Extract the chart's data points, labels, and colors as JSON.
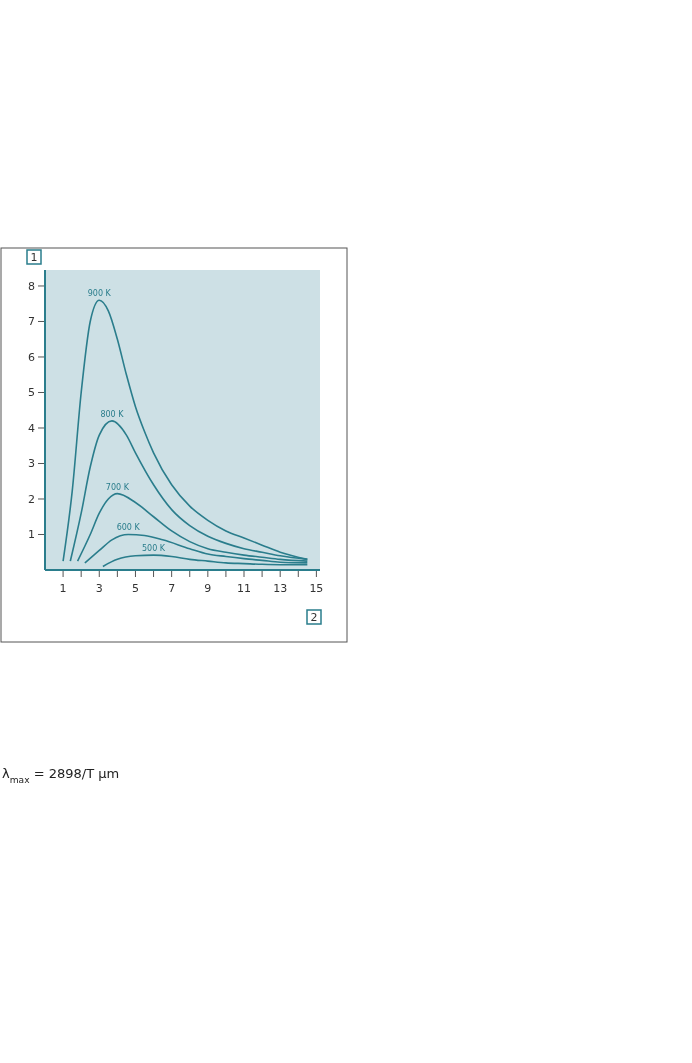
{
  "chart_data": {
    "type": "line",
    "xlabel": "2",
    "ylabel": "1",
    "xlim": [
      0,
      15.2
    ],
    "ylim": [
      0,
      8.45
    ],
    "xticks": [
      1,
      {
        "value": 2,
        "label": null
      },
      3,
      {
        "value": 4,
        "label": null
      },
      5,
      {
        "value": 6,
        "label": null
      },
      7,
      {
        "value": 8,
        "label": null
      },
      9,
      {
        "value": 10,
        "label": null
      },
      11,
      {
        "value": 12,
        "label": null
      },
      13,
      {
        "value": 14,
        "label": null
      },
      15
    ],
    "yticks": [
      1,
      2,
      3,
      4,
      5,
      6,
      7,
      8
    ],
    "grid": false,
    "marker": "none",
    "line_style": "solid",
    "annotations": [
      "λ$_{max}$ = 2898/T μm"
    ],
    "series": [
      {
        "name": "900 K",
        "color": "#2a7d8c",
        "x": [
          1,
          1.5,
          2,
          2.5,
          3,
          3.5,
          4,
          4.5,
          5,
          5.5,
          6,
          7,
          8,
          9,
          10,
          11,
          12,
          13,
          14.5
        ],
        "values": [
          0.25,
          2.2,
          5.0,
          7.0,
          7.6,
          7.3,
          6.5,
          5.5,
          4.6,
          3.9,
          3.3,
          2.4,
          1.8,
          1.4,
          1.1,
          0.9,
          0.7,
          0.5,
          0.3
        ]
      },
      {
        "name": "800 K",
        "color": "#2a7d8c",
        "x": [
          1.4,
          2,
          2.5,
          3,
          3.7,
          4.5,
          5,
          6,
          7,
          8,
          9,
          10,
          11,
          12,
          13,
          14.5
        ],
        "values": [
          0.25,
          1.6,
          2.9,
          3.8,
          4.2,
          3.8,
          3.3,
          2.4,
          1.7,
          1.25,
          0.95,
          0.75,
          0.6,
          0.5,
          0.4,
          0.3
        ]
      },
      {
        "name": "700 K",
        "color": "#2a7d8c",
        "x": [
          1.8,
          2.5,
          3,
          3.5,
          4,
          5,
          6,
          7,
          8,
          9,
          10,
          11,
          12,
          13,
          14.5
        ],
        "values": [
          0.25,
          1.0,
          1.6,
          2.0,
          2.15,
          1.9,
          1.5,
          1.1,
          0.8,
          0.6,
          0.5,
          0.42,
          0.36,
          0.3,
          0.25
        ]
      },
      {
        "name": "600 K",
        "color": "#2a7d8c",
        "x": [
          2.2,
          3,
          3.7,
          4.6,
          5.5,
          6.5,
          8,
          9,
          10,
          11,
          12,
          13,
          14.5
        ],
        "values": [
          0.2,
          0.55,
          0.85,
          1.0,
          0.97,
          0.85,
          0.6,
          0.45,
          0.38,
          0.32,
          0.27,
          0.22,
          0.2
        ]
      },
      {
        "name": "500 K",
        "color": "#2a7d8c",
        "x": [
          3.2,
          4,
          5,
          6,
          7,
          8,
          9,
          10,
          11,
          12,
          13,
          14.5
        ],
        "values": [
          0.1,
          0.3,
          0.4,
          0.42,
          0.38,
          0.3,
          0.25,
          0.2,
          0.18,
          0.16,
          0.15,
          0.15
        ]
      }
    ]
  }
}
